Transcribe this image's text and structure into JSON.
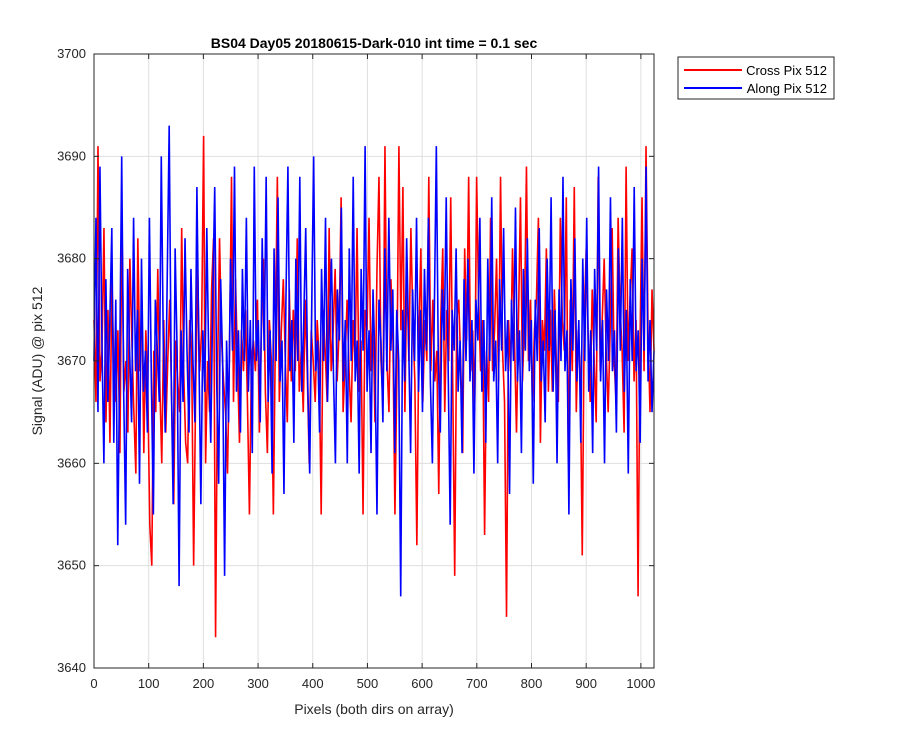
{
  "chart_data": {
    "type": "line",
    "title": "BS04 Day05 20180615-Dark-010 int time = 0.1 sec",
    "xlabel": "Pixels (both dirs on array)",
    "ylabel": "Signal (ADU) @ pix 512",
    "xlim": [
      0,
      1024
    ],
    "ylim": [
      3640,
      3700
    ],
    "xticks": [
      0,
      100,
      200,
      300,
      400,
      500,
      600,
      700,
      800,
      900,
      1000
    ],
    "yticks": [
      3640,
      3650,
      3660,
      3670,
      3680,
      3690,
      3700
    ],
    "xtick_labels": [
      "0",
      "100",
      "200",
      "300",
      "400",
      "500",
      "600",
      "700",
      "800",
      "900",
      "1000"
    ],
    "ytick_labels": [
      "3640",
      "3650",
      "3660",
      "3670",
      "3680",
      "3690",
      "3700"
    ],
    "grid": true,
    "legend_position": "outside-top-right",
    "series": [
      {
        "name": "Cross Pix 512",
        "color": "#ff0000",
        "values": [
          3674,
          3666,
          3691,
          3668,
          3671,
          3683,
          3664,
          3675,
          3662,
          3678,
          3669,
          3666,
          3673,
          3661,
          3684,
          3667,
          3670,
          3663,
          3680,
          3672,
          3665,
          3659,
          3682,
          3669,
          3676,
          3661,
          3673,
          3667,
          3654,
          3650,
          3671,
          3665,
          3679,
          3668,
          3660,
          3674,
          3663,
          3670,
          3676,
          3666,
          3656,
          3672,
          3668,
          3665,
          3683,
          3669,
          3662,
          3660,
          3674,
          3671,
          3650,
          3667,
          3679,
          3669,
          3673,
          3692,
          3660,
          3670,
          3665,
          3677,
          3682,
          3643,
          3669,
          3682,
          3672,
          3668,
          3665,
          3659,
          3671,
          3688,
          3666,
          3678,
          3670,
          3662,
          3673,
          3669,
          3675,
          3666,
          3655,
          3670,
          3672,
          3669,
          3676,
          3663,
          3673,
          3680,
          3667,
          3661,
          3674,
          3670,
          3655,
          3672,
          3688,
          3666,
          3673,
          3678,
          3670,
          3664,
          3677,
          3668,
          3675,
          3669,
          3682,
          3667,
          3671,
          3665,
          3676,
          3669,
          3660,
          3673,
          3670,
          3666,
          3674,
          3670,
          3655,
          3675,
          3671,
          3666,
          3683,
          3669,
          3673,
          3679,
          3668,
          3673,
          3686,
          3665,
          3670,
          3676,
          3669,
          3664,
          3674,
          3670,
          3683,
          3667,
          3672,
          3655,
          3675,
          3673,
          3684,
          3669,
          3675,
          3664,
          3679,
          3688,
          3670,
          3666,
          3691,
          3670,
          3665,
          3678,
          3672,
          3655,
          3669,
          3691,
          3673,
          3687,
          3665,
          3679,
          3670,
          3683,
          3674,
          3668,
          3652,
          3672,
          3681,
          3666,
          3674,
          3670,
          3688,
          3669,
          3676,
          3668,
          3671,
          3657,
          3674,
          3681,
          3665,
          3675,
          3670,
          3686,
          3668,
          3649,
          3674,
          3676,
          3670,
          3661,
          3681,
          3672,
          3688,
          3669,
          3673,
          3665,
          3688,
          3676,
          3669,
          3674,
          3653,
          3671,
          3666,
          3684,
          3669,
          3673,
          3680,
          3668,
          3688,
          3671,
          3666,
          3645,
          3674,
          3669,
          3681,
          3672,
          3663,
          3674,
          3686,
          3668,
          3674,
          3689,
          3670,
          3676,
          3666,
          3673,
          3676,
          3684,
          3662,
          3674,
          3671,
          3681,
          3667,
          3675,
          3667,
          3677,
          3670,
          3666,
          3684,
          3674,
          3671,
          3686,
          3660,
          3676,
          3669,
          3687,
          3665,
          3673,
          3669,
          3651,
          3674,
          3681,
          3672,
          3666,
          3677,
          3670,
          3664,
          3688,
          3669,
          3674,
          3680,
          3671,
          3665,
          3673,
          3683,
          3670,
          3666,
          3684,
          3675,
          3671,
          3663,
          3689,
          3670,
          3676,
          3681,
          3668,
          3674,
          3647,
          3672,
          3686,
          3669,
          3691,
          3673,
          3665,
          3677,
          3671
        ]
      },
      {
        "name": "Along Pix 512",
        "color": "#0000ff",
        "values": [
          3670,
          3684,
          3665,
          3689,
          3672,
          3660,
          3678,
          3666,
          3674,
          3683,
          3662,
          3676,
          3652,
          3670,
          3690,
          3667,
          3654,
          3679,
          3671,
          3664,
          3684,
          3669,
          3675,
          3658,
          3680,
          3667,
          3671,
          3663,
          3684,
          3668,
          3655,
          3676,
          3671,
          3666,
          3690,
          3672,
          3663,
          3678,
          3693,
          3669,
          3656,
          3681,
          3671,
          3648,
          3673,
          3666,
          3682,
          3671,
          3663,
          3679,
          3670,
          3664,
          3687,
          3671,
          3656,
          3673,
          3667,
          3683,
          3670,
          3662,
          3676,
          3687,
          3668,
          3658,
          3678,
          3670,
          3649,
          3672,
          3664,
          3680,
          3671,
          3689,
          3667,
          3673,
          3663,
          3679,
          3670,
          3684,
          3667,
          3674,
          3661,
          3689,
          3670,
          3674,
          3664,
          3682,
          3671,
          3688,
          3666,
          3673,
          3659,
          3681,
          3670,
          3686,
          3668,
          3672,
          3657,
          3676,
          3689,
          3669,
          3674,
          3662,
          3680,
          3670,
          3688,
          3667,
          3674,
          3683,
          3668,
          3659,
          3675,
          3690,
          3669,
          3672,
          3663,
          3679,
          3670,
          3684,
          3666,
          3674,
          3680,
          3669,
          3660,
          3677,
          3672,
          3685,
          3668,
          3674,
          3660,
          3681,
          3670,
          3688,
          3668,
          3672,
          3659,
          3679,
          3671,
          3691,
          3667,
          3673,
          3661,
          3677,
          3670,
          3655,
          3676,
          3672,
          3664,
          3681,
          3669,
          3684,
          3671,
          3677,
          3661,
          3675,
          3670,
          3647,
          3675,
          3668,
          3682,
          3672,
          3661,
          3677,
          3670,
          3684,
          3667,
          3675,
          3665,
          3679,
          3671,
          3684,
          3668,
          3660,
          3675,
          3691,
          3670,
          3663,
          3677,
          3672,
          3686,
          3669,
          3654,
          3675,
          3671,
          3681,
          3667,
          3672,
          3661,
          3678,
          3670,
          3680,
          3668,
          3674,
          3659,
          3676,
          3672,
          3684,
          3667,
          3674,
          3662,
          3680,
          3670,
          3686,
          3668,
          3672,
          3660,
          3678,
          3671,
          3683,
          3669,
          3674,
          3657,
          3676,
          3670,
          3685,
          3668,
          3673,
          3661,
          3679,
          3671,
          3682,
          3669,
          3674,
          3658,
          3676,
          3670,
          3683,
          3668,
          3672,
          3664,
          3680,
          3671,
          3686,
          3667,
          3675,
          3660,
          3677,
          3670,
          3688,
          3669,
          3673,
          3655,
          3678,
          3671,
          3682,
          3668,
          3674,
          3662,
          3680,
          3670,
          3684,
          3667,
          3673,
          3661,
          3679,
          3671,
          3689,
          3668,
          3674,
          3660,
          3677,
          3670,
          3686,
          3669,
          3673,
          3663,
          3681,
          3671,
          3684,
          3667,
          3675,
          3659,
          3678,
          3670,
          3687,
          3669,
          3673,
          3662,
          3680,
          3671,
          3689,
          3668,
          3674,
          3665,
          3671
        ]
      }
    ]
  }
}
